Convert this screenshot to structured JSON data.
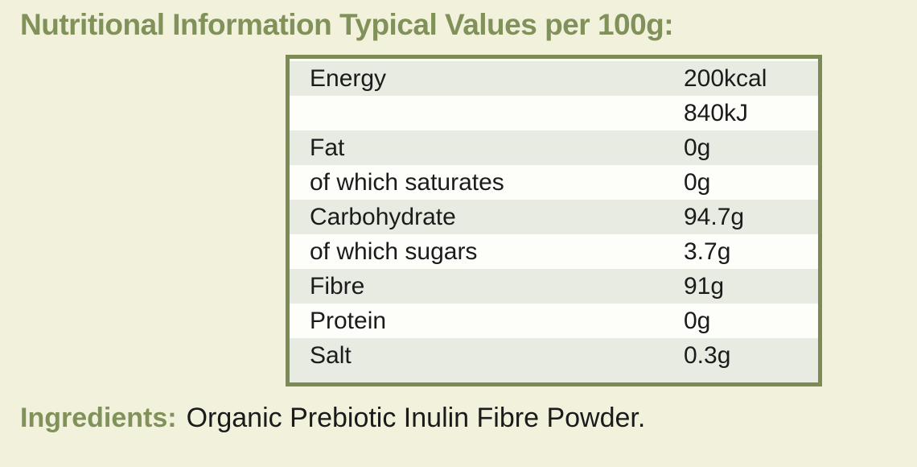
{
  "title": "Nutritional Information Typical Values per 100g:",
  "table": {
    "rows": [
      {
        "label": "Energy",
        "value": "200kcal"
      },
      {
        "label": "",
        "value": "840kJ"
      },
      {
        "label": "Fat",
        "value": "0g"
      },
      {
        "label": "of which saturates",
        "value": "0g"
      },
      {
        "label": "Carbohydrate",
        "value": "94.7g"
      },
      {
        "label": "of which sugars",
        "value": "3.7g"
      },
      {
        "label": "Fibre",
        "value": "91g"
      },
      {
        "label": "Protein",
        "value": "0g"
      },
      {
        "label": "Salt",
        "value": "0.3g"
      }
    ]
  },
  "ingredients": {
    "label": "Ingredients:",
    "value": "Organic Prebiotic Inulin Fibre Powder."
  },
  "colors": {
    "background": "#f1f1dc",
    "accent_green": "#81915a",
    "table_border": "#7c8a55",
    "row_shaded": "#e8ebe1",
    "row_white": "#fdfdfa",
    "text_dark": "#1b1b1b"
  }
}
